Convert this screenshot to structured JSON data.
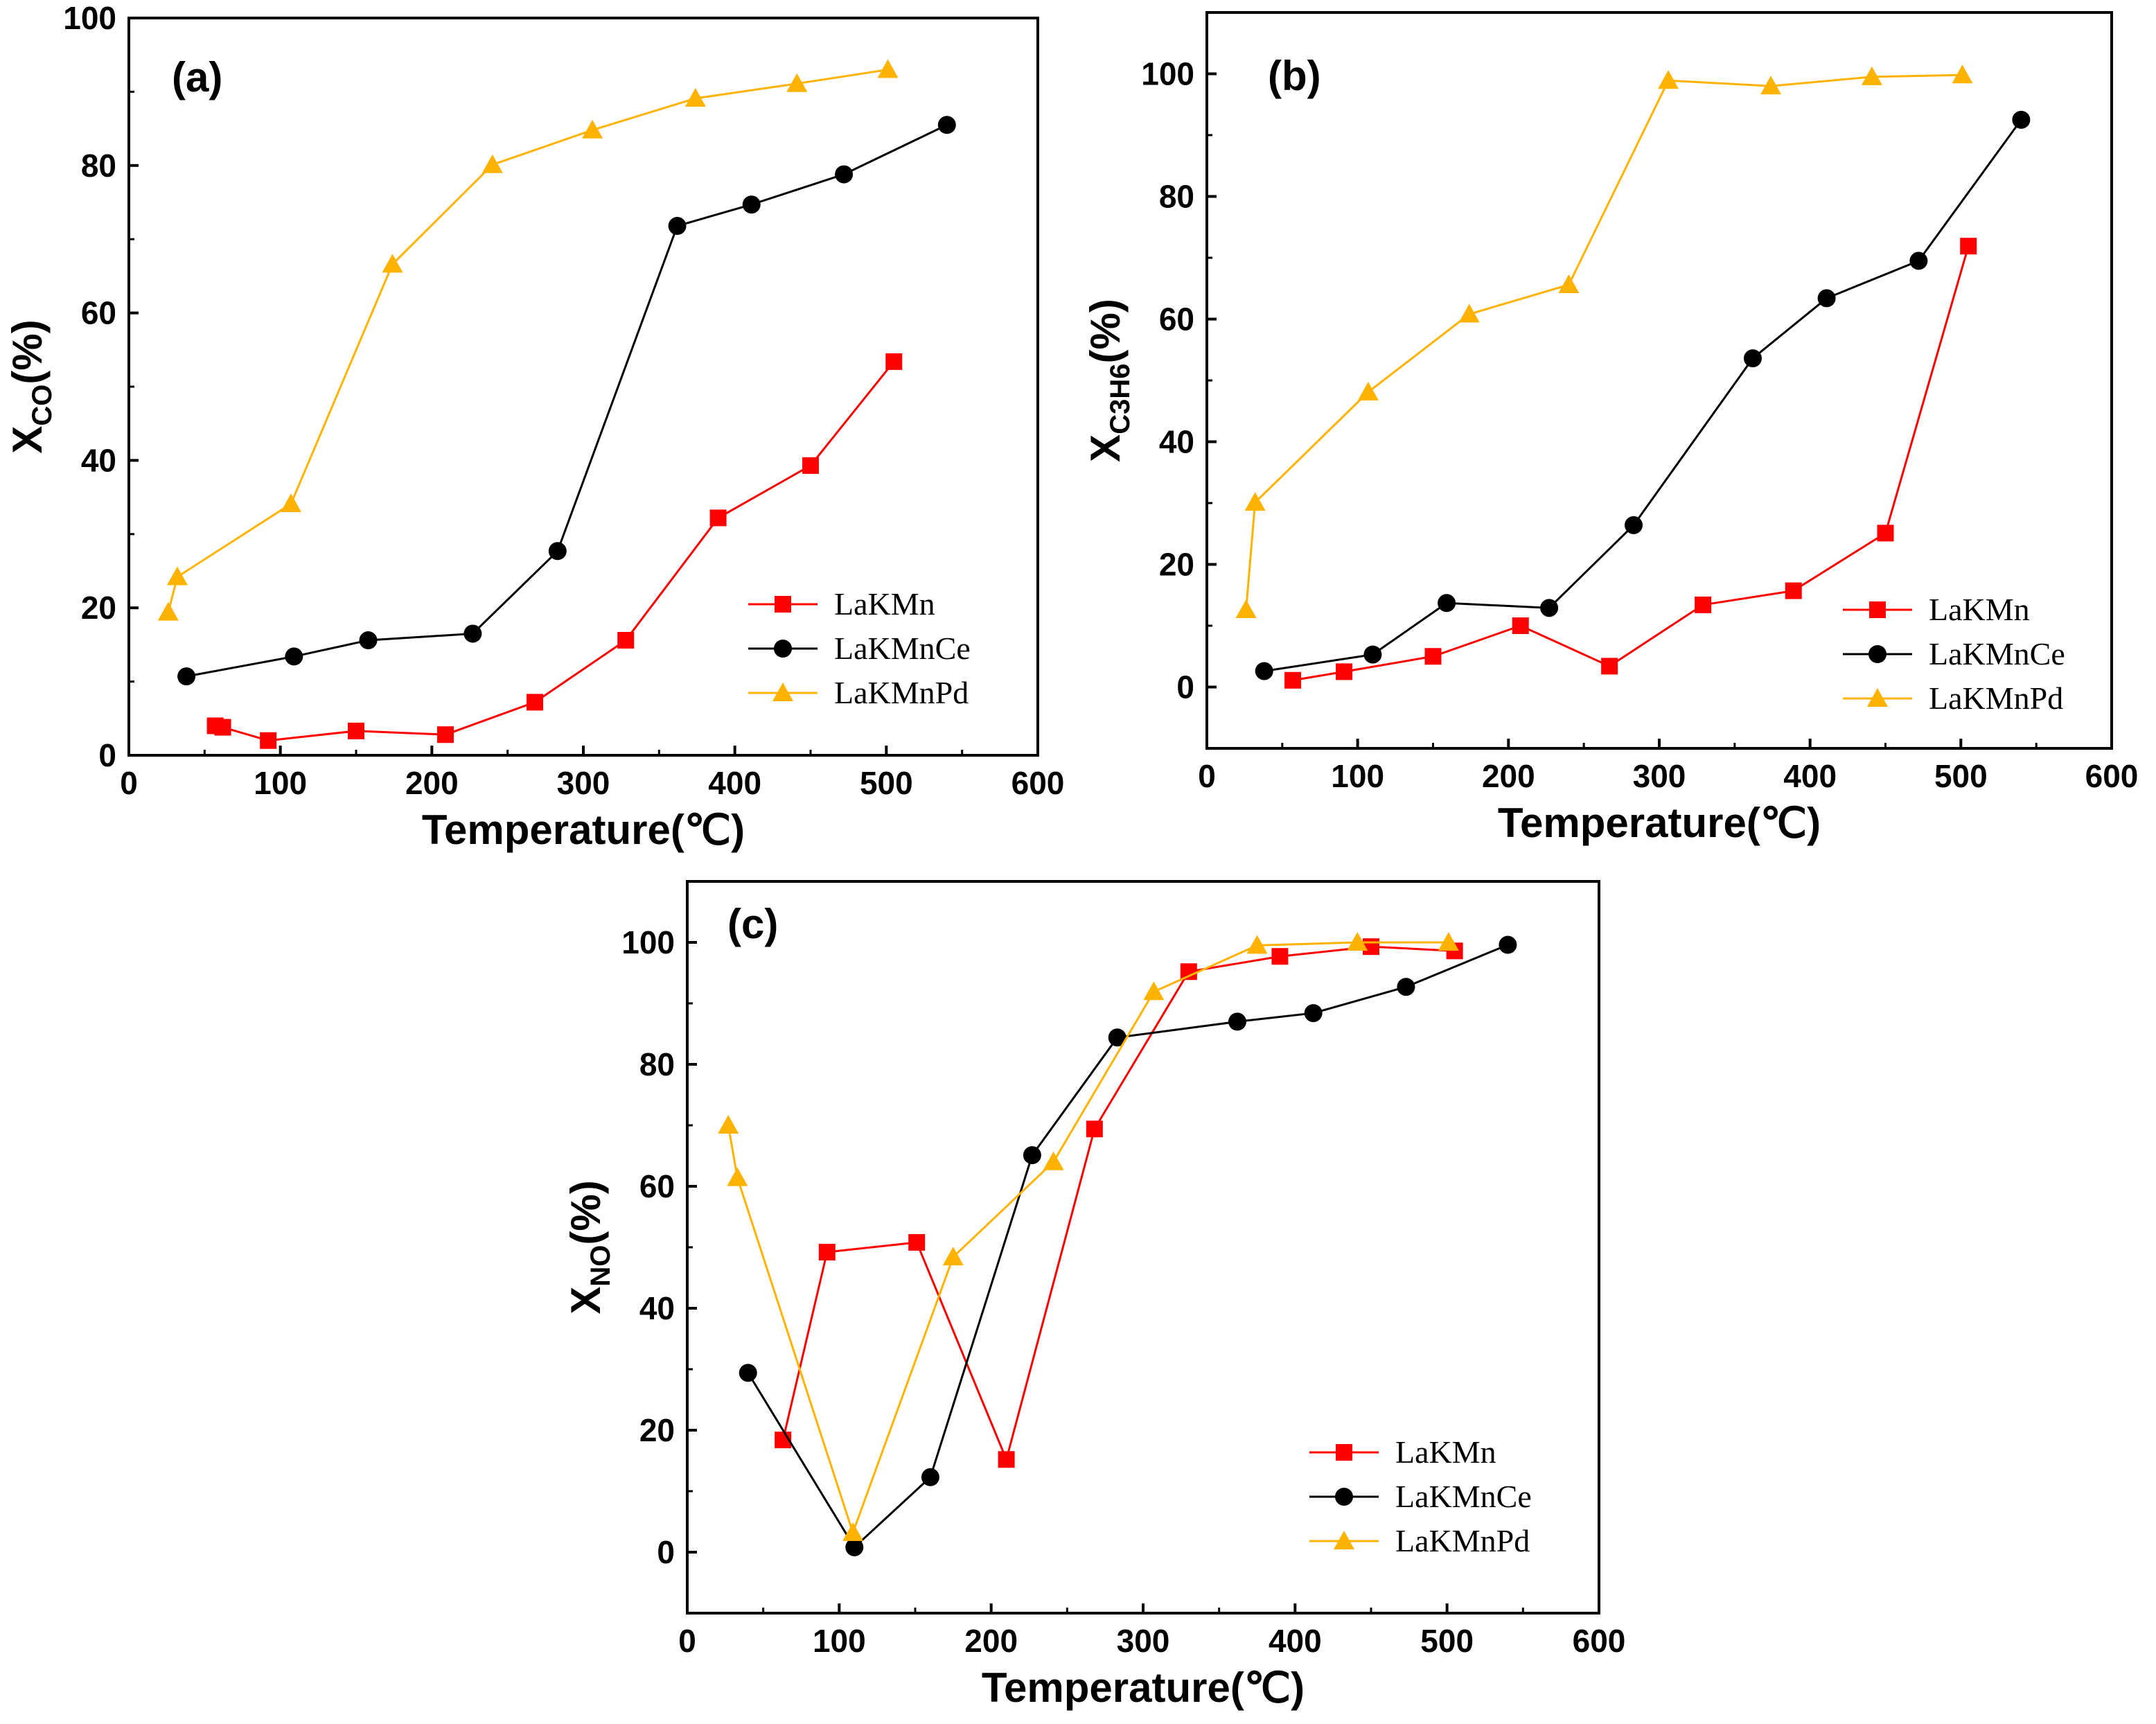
{
  "chart_data": [
    {
      "type": "line",
      "panel": "(a)",
      "xlabel": "Temperature(℃)",
      "ylabel_main": "X",
      "ylabel_sub": "CO",
      "ylabel_suffix": "(%)",
      "xlim": [
        0,
        600
      ],
      "ylim": [
        0,
        100
      ],
      "xticks": [
        0,
        100,
        200,
        300,
        400,
        500,
        600
      ],
      "yticks": [
        0,
        20,
        40,
        60,
        80,
        100
      ],
      "legend_position": "bottom-right",
      "series": [
        {
          "name": "LaKMn",
          "color": "#ff0000",
          "marker": "square",
          "x": [
            57,
            62,
            92,
            150,
            209,
            268,
            328,
            389,
            450,
            505
          ],
          "y": [
            4.0,
            3.8,
            2.0,
            3.3,
            2.8,
            7.2,
            15.6,
            32.2,
            39.3,
            53.4
          ]
        },
        {
          "name": "LaKMnCe",
          "color": "#000000",
          "marker": "circle",
          "x": [
            38,
            109,
            158,
            227,
            283,
            362,
            411,
            472,
            540
          ],
          "y": [
            10.7,
            13.4,
            15.6,
            16.5,
            27.7,
            71.8,
            74.7,
            78.8,
            85.5
          ]
        },
        {
          "name": "LaKMnPd",
          "color": "#ffb300",
          "marker": "triangle",
          "x": [
            26,
            32,
            107,
            174,
            240,
            306,
            374,
            441,
            501
          ],
          "y": [
            19.4,
            24.2,
            34.1,
            66.6,
            80.1,
            84.8,
            89.1,
            91.1,
            93.0
          ]
        }
      ]
    },
    {
      "type": "line",
      "panel": "(b)",
      "xlabel": "Temperature(℃)",
      "ylabel_main": "X",
      "ylabel_sub": "C3H6",
      "ylabel_suffix": "(%)",
      "xlim": [
        0,
        600
      ],
      "ylim": [
        -10,
        110
      ],
      "xticks": [
        0,
        100,
        200,
        300,
        400,
        500,
        600
      ],
      "yticks": [
        0,
        20,
        40,
        60,
        80,
        100
      ],
      "legend_position": "bottom-right",
      "series": [
        {
          "name": "LaKMn",
          "color": "#ff0000",
          "marker": "square",
          "x": [
            57,
            91,
            150,
            208,
            267,
            329,
            389,
            450,
            505
          ],
          "y": [
            1.1,
            2.5,
            5.0,
            10.0,
            3.4,
            13.4,
            15.7,
            25.1,
            71.9
          ]
        },
        {
          "name": "LaKMnCe",
          "color": "#000000",
          "marker": "circle",
          "x": [
            38,
            110,
            159,
            227,
            283,
            362,
            411,
            472,
            540
          ],
          "y": [
            2.6,
            5.3,
            13.7,
            12.9,
            26.4,
            53.6,
            63.4,
            69.5,
            92.5
          ]
        },
        {
          "name": "LaKMnPd",
          "color": "#ffb300",
          "marker": "triangle",
          "x": [
            26,
            32,
            107,
            174,
            240,
            306,
            374,
            441,
            501
          ],
          "y": [
            12.6,
            30.1,
            48.1,
            60.8,
            65.6,
            98.9,
            98.0,
            99.5,
            99.8
          ]
        }
      ]
    },
    {
      "type": "line",
      "panel": "(c)",
      "xlabel": "Temperature(℃)",
      "ylabel_main": "X",
      "ylabel_sub": "NO",
      "ylabel_suffix": "(%)",
      "xlim": [
        0,
        600
      ],
      "ylim": [
        -10,
        110
      ],
      "xticks": [
        0,
        100,
        200,
        300,
        400,
        500,
        600
      ],
      "yticks": [
        0,
        20,
        40,
        60,
        80,
        100
      ],
      "legend_position": "bottom-right",
      "series": [
        {
          "name": "LaKMn",
          "color": "#ff0000",
          "marker": "square",
          "x": [
            63,
            92,
            151,
            210,
            268,
            330,
            390,
            450,
            505
          ],
          "y": [
            18.4,
            49.2,
            50.8,
            15.2,
            69.4,
            95.2,
            97.7,
            99.3,
            98.6
          ]
        },
        {
          "name": "LaKMnCe",
          "color": "#000000",
          "marker": "circle",
          "x": [
            40,
            110,
            160,
            227,
            283,
            362,
            412,
            473,
            540
          ],
          "y": [
            29.4,
            0.8,
            12.3,
            65.1,
            84.4,
            87.0,
            88.4,
            92.7,
            99.6
          ]
        },
        {
          "name": "LaKMnPd",
          "color": "#ffb300",
          "marker": "triangle",
          "x": [
            27,
            33,
            109,
            175,
            241,
            307,
            375,
            441,
            501
          ],
          "y": [
            70.0,
            61.4,
            3.2,
            48.4,
            64.0,
            91.9,
            99.5,
            100.0,
            100.0
          ]
        }
      ]
    }
  ]
}
